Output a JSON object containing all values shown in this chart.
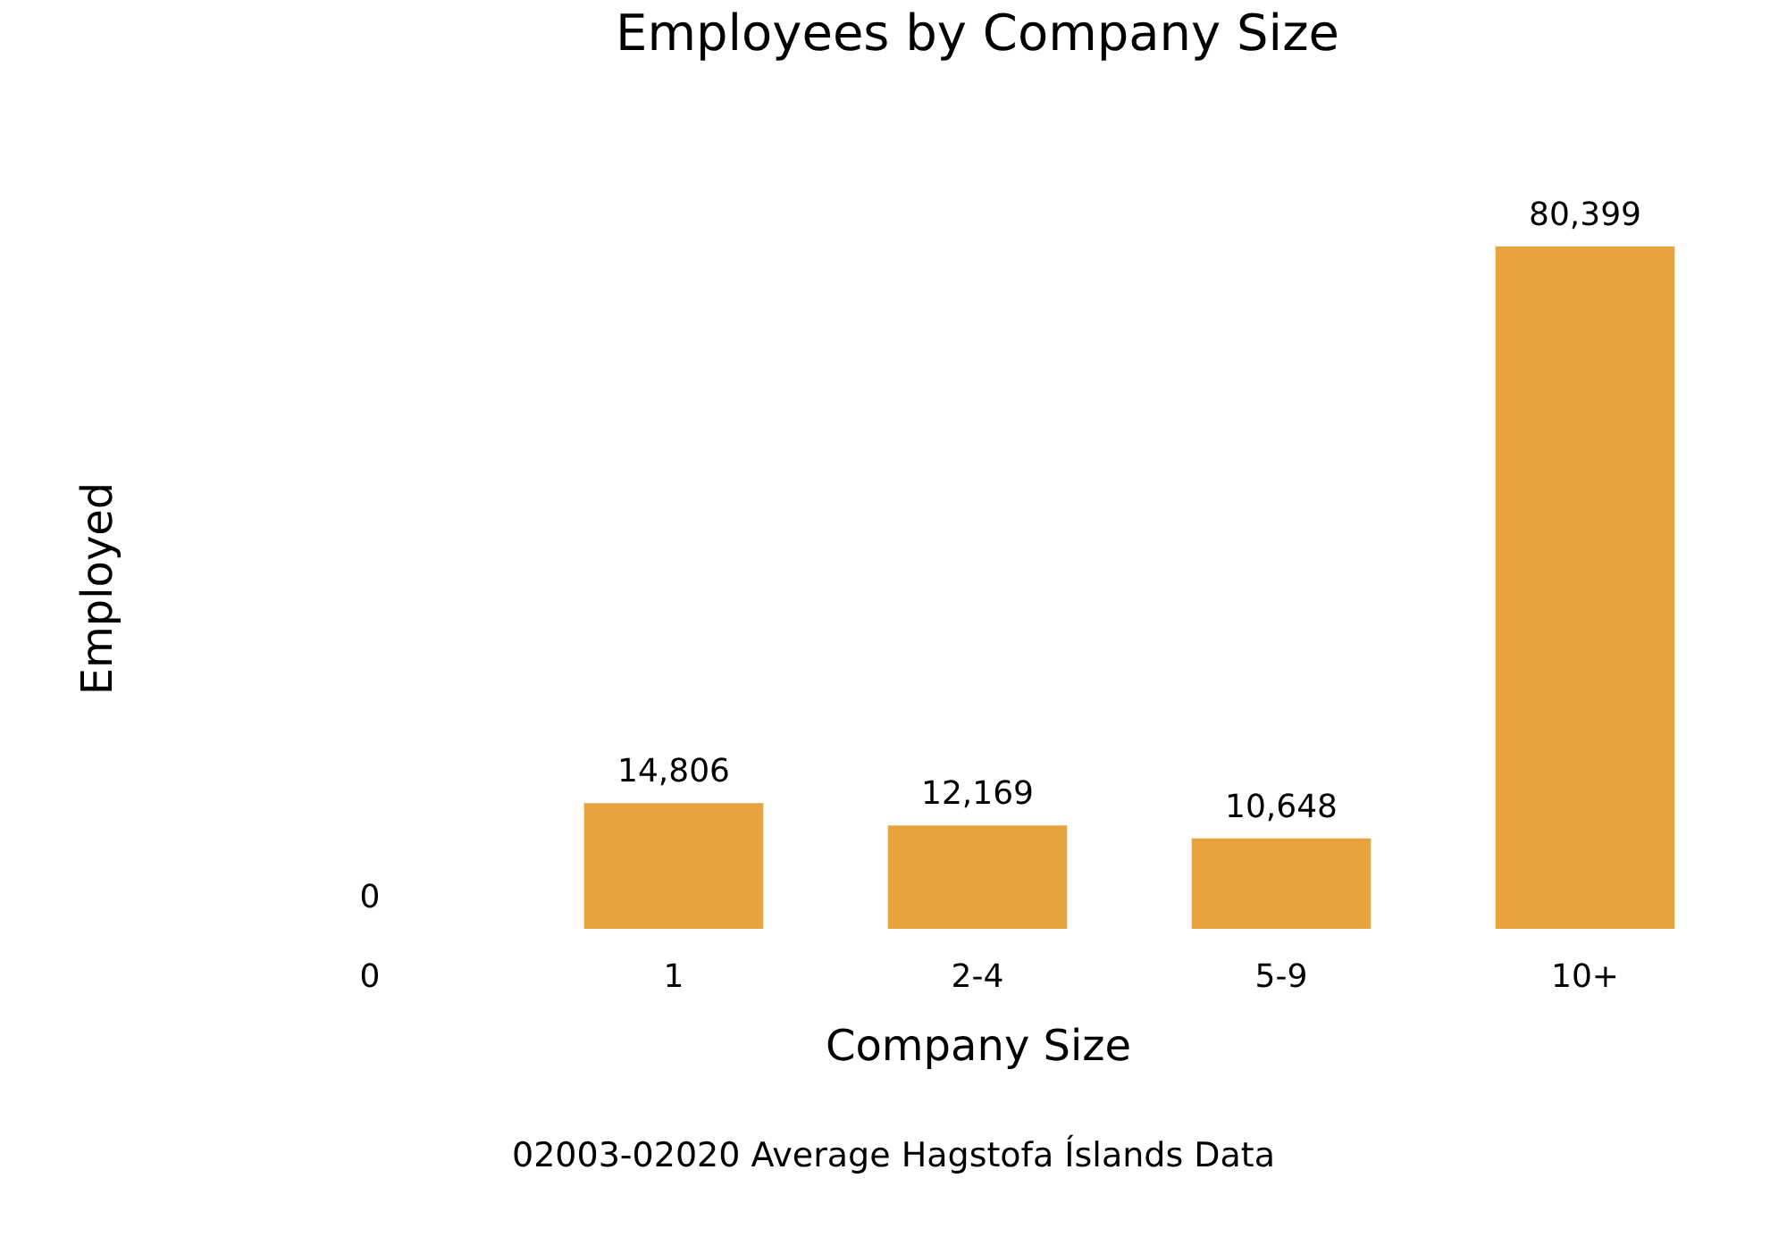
{
  "chart_data": {
    "type": "bar",
    "title": "Employees by Company Size",
    "xlabel": "Company Size",
    "ylabel": "Employed",
    "categories": [
      "0",
      "1",
      "2-4",
      "5-9",
      "10+"
    ],
    "values": [
      0,
      14806,
      12169,
      10648,
      80399
    ],
    "value_labels": [
      "0",
      "14,806",
      "12,169",
      "10,648",
      "80,399"
    ],
    "color": "#e8a33f",
    "grid": false,
    "annotations": [
      "02003-02020 Average Hagstofa Íslands Data"
    ]
  }
}
